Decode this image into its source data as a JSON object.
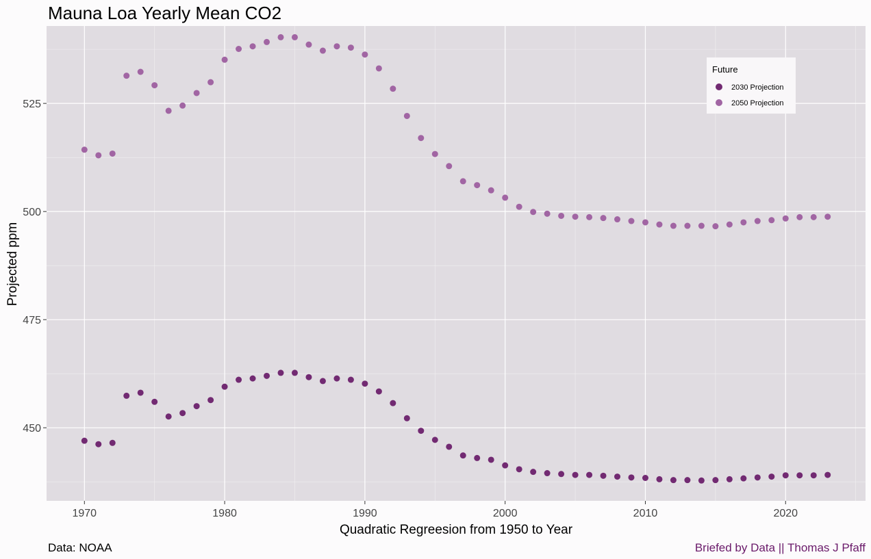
{
  "chart_data": {
    "type": "scatter",
    "title": "Mauna Loa Yearly Mean CO2",
    "xlabel": "Quadratic Regreesion from 1950 to Year",
    "ylabel": "Projected ppm",
    "xlim": [
      1967.3,
      2025.7
    ],
    "ylim": [
      433.1,
      542.9
    ],
    "x_ticks": [
      1970,
      1980,
      1990,
      2000,
      2010,
      2020
    ],
    "y_ticks": [
      450,
      475,
      500,
      525
    ],
    "grid": true,
    "legend": {
      "title": "Future",
      "placement": "top-right"
    },
    "caption_left": "Data: NOAA",
    "caption_right": "Briefed by Data || Thomas J Pfaff",
    "series": [
      {
        "name": "2030 Projection",
        "color": "#722a72",
        "x": [
          1970,
          1971,
          1972,
          1973,
          1974,
          1975,
          1976,
          1977,
          1978,
          1979,
          1980,
          1981,
          1982,
          1983,
          1984,
          1985,
          1986,
          1987,
          1988,
          1989,
          1990,
          1991,
          1992,
          1993,
          1994,
          1995,
          1996,
          1997,
          1998,
          1999,
          2000,
          2001,
          2002,
          2003,
          2004,
          2005,
          2006,
          2007,
          2008,
          2009,
          2010,
          2011,
          2012,
          2013,
          2014,
          2015,
          2016,
          2017,
          2018,
          2019,
          2020,
          2021,
          2022,
          2023
        ],
        "values": [
          447.0,
          446.2,
          446.5,
          457.4,
          458.1,
          456.0,
          452.6,
          453.4,
          455.0,
          456.4,
          459.5,
          461.1,
          461.4,
          462.0,
          462.7,
          462.7,
          461.7,
          460.8,
          461.4,
          461.1,
          460.2,
          458.4,
          455.7,
          452.2,
          449.3,
          447.2,
          445.6,
          443.6,
          443.0,
          442.6,
          441.3,
          440.4,
          439.8,
          439.5,
          439.3,
          439.1,
          439.1,
          438.9,
          438.7,
          438.5,
          438.4,
          438.1,
          437.9,
          437.9,
          437.8,
          437.9,
          438.1,
          438.3,
          438.5,
          438.7,
          439.0,
          439.0,
          439.0,
          439.1
        ]
      },
      {
        "name": "2050 Projection",
        "color": "#a165a3",
        "x": [
          1970,
          1971,
          1972,
          1973,
          1974,
          1975,
          1976,
          1977,
          1978,
          1979,
          1980,
          1981,
          1982,
          1983,
          1984,
          1985,
          1986,
          1987,
          1988,
          1989,
          1990,
          1991,
          1992,
          1993,
          1994,
          1995,
          1996,
          1997,
          1998,
          1999,
          2000,
          2001,
          2002,
          2003,
          2004,
          2005,
          2006,
          2007,
          2008,
          2009,
          2010,
          2011,
          2012,
          2013,
          2014,
          2015,
          2016,
          2017,
          2018,
          2019,
          2020,
          2021,
          2022,
          2023
        ],
        "values": [
          514.3,
          513.0,
          513.4,
          531.4,
          532.3,
          529.2,
          523.3,
          524.5,
          527.4,
          529.9,
          535.1,
          537.6,
          538.2,
          539.2,
          540.3,
          540.3,
          538.6,
          537.2,
          538.2,
          537.9,
          536.3,
          533.1,
          528.4,
          522.1,
          517.0,
          513.3,
          510.5,
          507.0,
          506.1,
          504.9,
          503.2,
          501.1,
          499.9,
          499.5,
          499.0,
          498.8,
          498.7,
          498.5,
          498.2,
          497.8,
          497.5,
          497.0,
          496.7,
          496.7,
          496.7,
          496.6,
          497.0,
          497.5,
          497.8,
          498.0,
          498.4,
          498.7,
          498.7,
          498.8
        ]
      }
    ]
  }
}
